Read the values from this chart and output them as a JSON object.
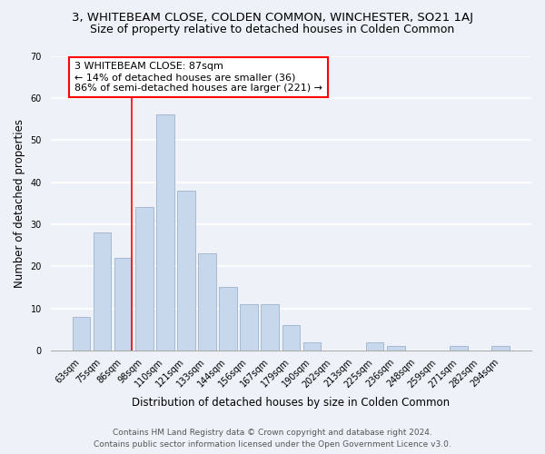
{
  "title": "3, WHITEBEAM CLOSE, COLDEN COMMON, WINCHESTER, SO21 1AJ",
  "subtitle": "Size of property relative to detached houses in Colden Common",
  "xlabel": "Distribution of detached houses by size in Colden Common",
  "ylabel": "Number of detached properties",
  "bar_labels": [
    "63sqm",
    "75sqm",
    "86sqm",
    "98sqm",
    "110sqm",
    "121sqm",
    "133sqm",
    "144sqm",
    "156sqm",
    "167sqm",
    "179sqm",
    "190sqm",
    "202sqm",
    "213sqm",
    "225sqm",
    "236sqm",
    "248sqm",
    "259sqm",
    "271sqm",
    "282sqm",
    "294sqm"
  ],
  "bar_values": [
    8,
    28,
    22,
    34,
    56,
    38,
    23,
    15,
    11,
    11,
    6,
    2,
    0,
    0,
    2,
    1,
    0,
    0,
    1,
    0,
    1
  ],
  "bar_color": "#c8d8ec",
  "bar_edge_color": "#9ab4cc",
  "redline_bar_index": 2,
  "annotation_text": "3 WHITEBEAM CLOSE: 87sqm\n← 14% of detached houses are smaller (36)\n86% of semi-detached houses are larger (221) →",
  "annotation_box_color": "white",
  "annotation_box_edge": "red",
  "redline_color": "red",
  "ylim": [
    0,
    70
  ],
  "yticks": [
    0,
    10,
    20,
    30,
    40,
    50,
    60,
    70
  ],
  "footer_line1": "Contains HM Land Registry data © Crown copyright and database right 2024.",
  "footer_line2": "Contains public sector information licensed under the Open Government Licence v3.0.",
  "bg_color": "#eef2f8",
  "plot_bg_color": "#eef2f8",
  "title_fontsize": 9.5,
  "subtitle_fontsize": 9,
  "axis_label_fontsize": 8.5,
  "tick_fontsize": 7,
  "annotation_fontsize": 8,
  "footer_fontsize": 6.5
}
